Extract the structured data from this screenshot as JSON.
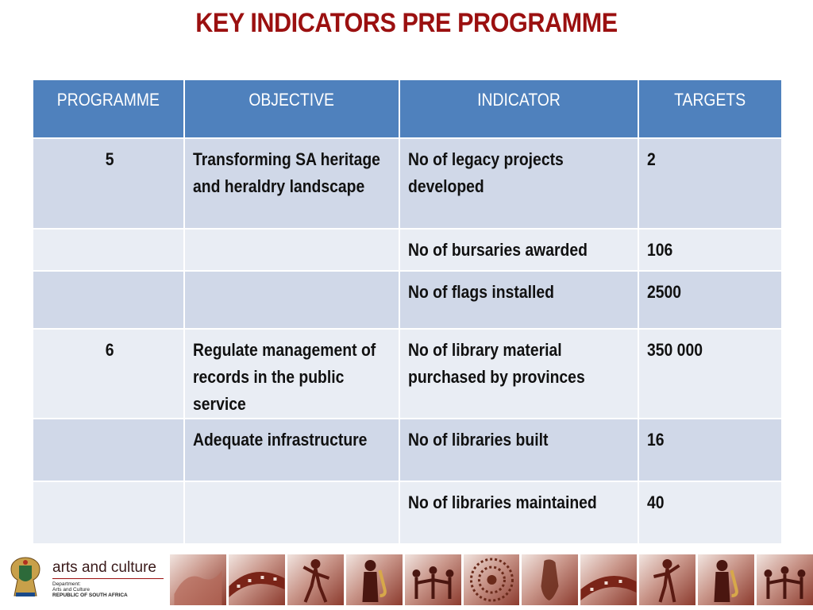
{
  "slide": {
    "title": "KEY INDICATORS PRE PROGRAMME"
  },
  "table": {
    "headers": [
      "PROGRAMME",
      "OBJECTIVE",
      "INDICATOR",
      "TARGETS"
    ],
    "rows": [
      {
        "programme": "5",
        "objective": "Transforming SA heritage and heraldry landscape",
        "indicator": "No of legacy projects developed",
        "target": "2"
      },
      {
        "programme": "",
        "objective": "",
        "indicator": "No of bursaries awarded",
        "target": "106"
      },
      {
        "programme": "",
        "objective": "",
        "indicator": "No of flags installed",
        "target": "2500"
      },
      {
        "programme": "6",
        "objective": "Regulate management of records in the public service",
        "indicator": "No of library material purchased by provinces",
        "target": "350 000"
      },
      {
        "programme": "",
        "objective": "Adequate infrastructure",
        "indicator": "No of libraries built",
        "target": "16"
      },
      {
        "programme": "",
        "objective": "",
        "indicator": "No of libraries maintained",
        "target": "40"
      }
    ]
  },
  "footer": {
    "logo": {
      "name": "arts and culture",
      "line1": "Department:",
      "line2": "Arts and Culture",
      "line3": "REPUBLIC OF SOUTH AFRICA"
    },
    "images": [
      "hands-icon",
      "film-reel-icon",
      "dancer-icon",
      "saxophonist-icon",
      "dancers-circle-icon",
      "beadwork-icon",
      "sculpture-icon",
      "film-reel-icon",
      "dancer-icon",
      "saxophonist-icon",
      "dancers-circle-icon"
    ]
  },
  "colors": {
    "title": "#9b1010",
    "header_bg": "#4f81bd",
    "row_dark": "#d0d8e8",
    "row_light": "#e9edf4"
  }
}
